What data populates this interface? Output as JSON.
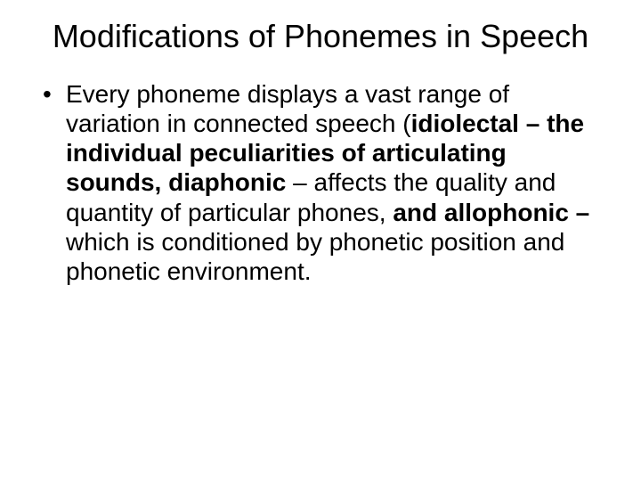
{
  "title": "Modifications of Phonemes in Speech",
  "bullet": {
    "t1": "Every phoneme displays a vast range of variation in connected speech (",
    "b1": "idiolectal – the individual peculiarities of articulating sounds,",
    "t2": "  ",
    "b2": "diaphonic",
    "t3": " – affects the quality and quantity of particular phones,  ",
    "b3": "and allophonic –",
    "t4": " which is conditioned by phonetic position and phonetic environment."
  }
}
